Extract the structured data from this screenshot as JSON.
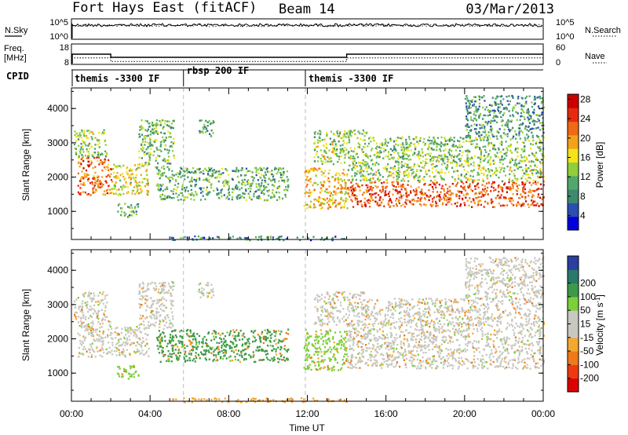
{
  "header": {
    "title": "Fort Hays East (fitACF)",
    "beam": "Beam 14",
    "date": "03/Mar/2013"
  },
  "nsky_panel": {
    "left_label": "N.Sky",
    "right_label": "N.Search",
    "left_ticks": [
      "10^5",
      "10^0"
    ],
    "right_ticks": [
      "10^5",
      "10^0"
    ]
  },
  "freq_panel": {
    "left_label_line1": "Freq.",
    "left_label_line2": "[MHz]",
    "right_label": "Nave",
    "left_ticks": [
      "18",
      "8"
    ],
    "right_ticks": [
      "60",
      "0"
    ],
    "freq_mhz": {
      "x_hours": [
        0,
        2,
        2,
        14,
        14,
        24
      ],
      "values": [
        14,
        14,
        12,
        12,
        14,
        14
      ]
    },
    "nave": {
      "x_hours": [
        0,
        2,
        2,
        14,
        14,
        24
      ],
      "values": [
        22,
        22,
        8,
        8,
        22,
        22
      ]
    }
  },
  "cpid": {
    "label": "CPID",
    "segments": [
      {
        "start_hour": 0,
        "end_hour": 5.7,
        "text": "themis -3300 IF"
      },
      {
        "start_hour": 5.7,
        "end_hour": 11.9,
        "text": "rbsp 200 IF"
      },
      {
        "start_hour": 11.9,
        "end_hour": 24,
        "text": "themis -3300 IF"
      }
    ]
  },
  "chart_data": [
    {
      "type": "heatmap",
      "name": "power",
      "ylabel": "Slant Range [km]",
      "y_ticks": [
        "1000",
        "2000",
        "3000",
        "4000"
      ],
      "ylim": [
        180,
        4600
      ],
      "xlim_hours": [
        0,
        24
      ],
      "colorbar": {
        "label": "Power [dB]",
        "ticks": [
          "4",
          "8",
          "12",
          "16",
          "20",
          "24",
          "28"
        ],
        "colors": [
          "#0000dd",
          "#2a4fb0",
          "#3e8a6f",
          "#52a86c",
          "#8fcf3a",
          "#f4e41a",
          "#f5a21b",
          "#ef6a15",
          "#e52a10",
          "#cc0000"
        ]
      },
      "regions": [
        {
          "t0": 0.3,
          "t1": 2.0,
          "r0": 1500,
          "r1": 2600,
          "level": 0.75
        },
        {
          "t0": 0.1,
          "t1": 1.8,
          "r0": 2600,
          "r1": 3400,
          "level": 0.45
        },
        {
          "t0": 2.0,
          "t1": 3.9,
          "r0": 1500,
          "r1": 2400,
          "level": 0.55
        },
        {
          "t0": 2.3,
          "t1": 3.4,
          "r0": 850,
          "r1": 1250,
          "level": 0.35
        },
        {
          "t0": 3.4,
          "t1": 5.2,
          "r0": 2300,
          "r1": 3700,
          "level": 0.4
        },
        {
          "t0": 4.3,
          "t1": 11.0,
          "r0": 1350,
          "r1": 2300,
          "level": 0.35
        },
        {
          "t0": 6.4,
          "t1": 7.2,
          "r0": 3200,
          "r1": 3700,
          "level": 0.3
        },
        {
          "t0": 11.8,
          "t1": 14.0,
          "r0": 1100,
          "r1": 2300,
          "level": 0.6
        },
        {
          "t0": 12.3,
          "t1": 15.0,
          "r0": 2400,
          "r1": 3400,
          "level": 0.45
        },
        {
          "t0": 14.0,
          "t1": 24.0,
          "r0": 1150,
          "r1": 1900,
          "level": 0.78
        },
        {
          "t0": 14.0,
          "t1": 24.0,
          "r0": 1900,
          "r1": 2500,
          "level": 0.45
        },
        {
          "t0": 15.0,
          "t1": 24.0,
          "r0": 2500,
          "r1": 3200,
          "level": 0.4
        },
        {
          "t0": 20.0,
          "t1": 24.0,
          "r0": 3200,
          "r1": 4400,
          "level": 0.3
        },
        {
          "t0": 5.0,
          "t1": 14.0,
          "r0": 180,
          "r1": 300,
          "level": 0.25
        }
      ]
    },
    {
      "type": "heatmap",
      "name": "velocity",
      "ylabel": "Slant Range [km]",
      "y_ticks": [
        "1000",
        "2000",
        "3000",
        "4000"
      ],
      "ylim": [
        180,
        4600
      ],
      "xlim_hours": [
        0,
        24
      ],
      "x_ticks": [
        "00:00",
        "04:00",
        "08:00",
        "12:00",
        "16:00",
        "20:00",
        "00:00"
      ],
      "xlabel": "Time UT",
      "colorbar": {
        "label": "Velocity [m s",
        "label_sup": "-1",
        "label_end": "]",
        "ticks": [
          "-200",
          "-100",
          "-50",
          "-15",
          "15",
          "50",
          "100",
          "200"
        ],
        "colors": [
          "#dd0000",
          "#ef3a10",
          "#f07a18",
          "#f5a830",
          "#c8c8c0",
          "#c8c8c0",
          "#7ccf3a",
          "#3c9a48",
          "#2a7a6a",
          "#2a3fa0"
        ]
      },
      "regions": [
        {
          "t0": 0.3,
          "t1": 2.0,
          "r0": 1500,
          "r1": 2600,
          "color": "#c8c8c0"
        },
        {
          "t0": 0.1,
          "t1": 1.8,
          "r0": 2600,
          "r1": 3400,
          "color": "#c8c8c0"
        },
        {
          "t0": 2.0,
          "t1": 3.9,
          "r0": 1500,
          "r1": 2400,
          "color": "#c8c8c0"
        },
        {
          "t0": 2.3,
          "t1": 3.4,
          "r0": 850,
          "r1": 1250,
          "color": "#7ccf3a"
        },
        {
          "t0": 3.4,
          "t1": 5.2,
          "r0": 2300,
          "r1": 3700,
          "color": "#c8c8c0"
        },
        {
          "t0": 4.3,
          "t1": 11.0,
          "r0": 1350,
          "r1": 2300,
          "color": "#3c9a48"
        },
        {
          "t0": 6.4,
          "t1": 7.2,
          "r0": 3200,
          "r1": 3700,
          "color": "#c8c8c0"
        },
        {
          "t0": 11.8,
          "t1": 14.0,
          "r0": 1100,
          "r1": 2300,
          "color": "#7ccf3a"
        },
        {
          "t0": 12.3,
          "t1": 15.0,
          "r0": 2400,
          "r1": 3400,
          "color": "#c8c8c0"
        },
        {
          "t0": 14.0,
          "t1": 24.0,
          "r0": 1150,
          "r1": 2500,
          "color": "#c8c8c0"
        },
        {
          "t0": 15.0,
          "t1": 24.0,
          "r0": 2500,
          "r1": 3200,
          "color": "#c8c8c0"
        },
        {
          "t0": 20.0,
          "t1": 24.0,
          "r0": 3200,
          "r1": 4400,
          "color": "#c8c8c0"
        },
        {
          "t0": 5.0,
          "t1": 14.0,
          "r0": 180,
          "r1": 300,
          "color": "#f5a830"
        }
      ]
    }
  ]
}
